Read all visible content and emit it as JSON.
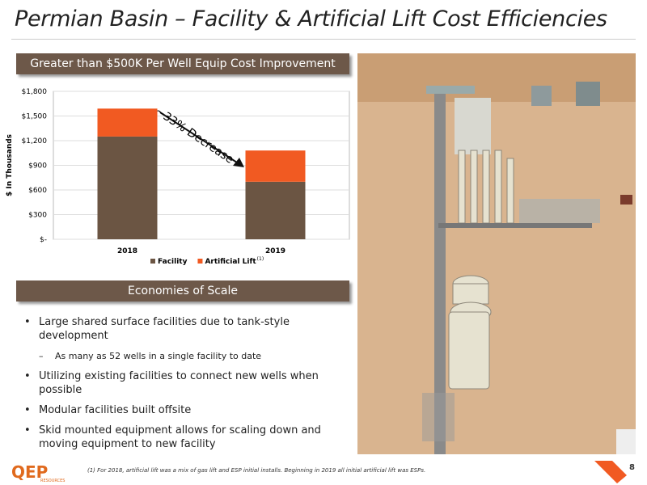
{
  "title": "Permian Basin – Facility & Artificial Lift Cost Efficiencies",
  "chart_banner": "Greater than $500K Per Well Equip Cost Improvement",
  "chart_data": {
    "type": "stacked-bar",
    "categories": [
      "2018",
      "2019"
    ],
    "series": [
      {
        "name": "Facility",
        "color": "#6b5543",
        "values": [
          1250,
          700
        ]
      },
      {
        "name": "Artificial Lift",
        "footnote_mark": "(1)",
        "color": "#f15a22",
        "values": [
          340,
          380
        ]
      }
    ],
    "ylim": [
      0,
      1800
    ],
    "yticks": [
      {
        "value": 0,
        "label": "$-"
      },
      {
        "value": 300,
        "label": "$300"
      },
      {
        "value": 600,
        "label": "$600"
      },
      {
        "value": 900,
        "label": "$900"
      },
      {
        "value": 1200,
        "label": "$1,200"
      },
      {
        "value": 1500,
        "label": "$1,500"
      },
      {
        "value": 1800,
        "label": "$1,800"
      }
    ],
    "y_label": "$ In Thousands",
    "annotation": "~33% Decrease",
    "grid": true
  },
  "section_banner": "Economies of Scale",
  "bullets": [
    {
      "level": 1,
      "text": "Large shared surface facilities due to tank-style development"
    },
    {
      "level": 2,
      "text": "As many as 52 wells in a single facility to date"
    },
    {
      "level": 1,
      "text": "Utilizing existing facilities to connect new wells when possible"
    },
    {
      "level": 1,
      "text": "Modular facilities built offsite"
    },
    {
      "level": 1,
      "text": "Skid mounted equipment allows for scaling down and moving equipment to new facility"
    }
  ],
  "footer": {
    "logo": "QEP",
    "logo_sub": "RESOURCES",
    "footnote": "(1)  For 2018, artificial lift was a mix of gas lift and ESP initial installs.  Beginning in 2019 all initial artificial lift was ESPs.",
    "page": "8"
  }
}
